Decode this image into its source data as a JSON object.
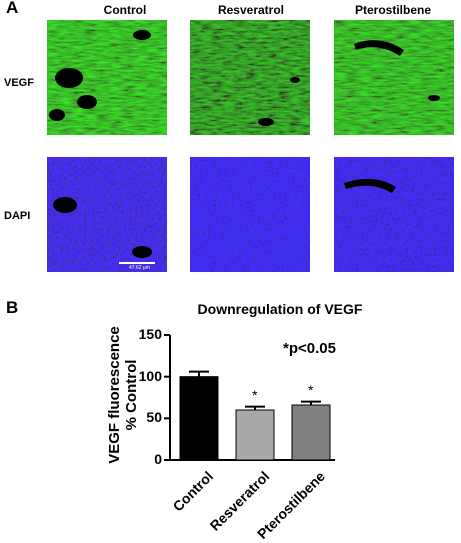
{
  "panel_a": {
    "letter": "A",
    "column_labels": [
      "Control",
      "Resveratrol",
      "Pterostilbene"
    ],
    "row_labels": [
      "VEGF",
      "DAPI"
    ],
    "scale_bar_text": "47.62 µm",
    "colors": {
      "vegf": "#2fb52a",
      "dapi": "#1f10f2",
      "background": "#000000"
    }
  },
  "panel_b": {
    "letter": "B",
    "significance_note": "*p<0.05",
    "bar_color_control": "#000000",
    "bar_color_resveratrol": "#a9a9a9",
    "bar_color_pterostilbene": "#808080"
  },
  "chart_data": {
    "type": "bar",
    "title": "Downregulation of VEGF",
    "ylabel": "VEGF fluorescence\n% Control",
    "xlabel": "",
    "categories": [
      "Control",
      "Resveratrol",
      "Pterostilbene"
    ],
    "values": [
      100,
      60,
      66
    ],
    "error_bars": [
      6,
      4,
      4
    ],
    "significance_markers": [
      "",
      "*",
      "*"
    ],
    "ylim": [
      0,
      150
    ],
    "yticks": [
      0,
      50,
      100,
      150
    ]
  }
}
